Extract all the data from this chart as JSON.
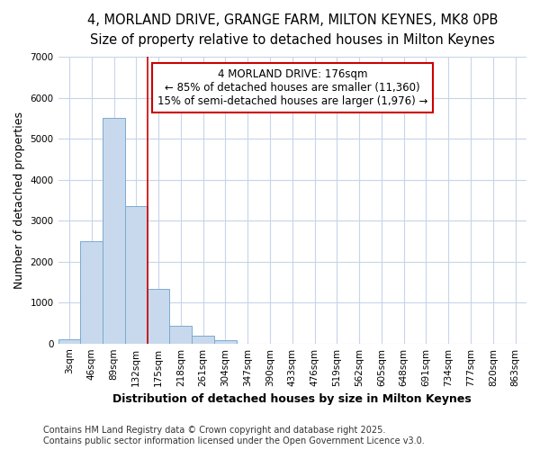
{
  "title_line1": "4, MORLAND DRIVE, GRANGE FARM, MILTON KEYNES, MK8 0PB",
  "title_line2": "Size of property relative to detached houses in Milton Keynes",
  "xlabel": "Distribution of detached houses by size in Milton Keynes",
  "ylabel": "Number of detached properties",
  "categories": [
    "3sqm",
    "46sqm",
    "89sqm",
    "132sqm",
    "175sqm",
    "218sqm",
    "261sqm",
    "304sqm",
    "347sqm",
    "390sqm",
    "433sqm",
    "476sqm",
    "519sqm",
    "562sqm",
    "605sqm",
    "648sqm",
    "691sqm",
    "734sqm",
    "777sqm",
    "820sqm",
    "863sqm"
  ],
  "values": [
    100,
    2500,
    5500,
    3350,
    1330,
    430,
    200,
    70,
    0,
    0,
    0,
    0,
    0,
    0,
    0,
    0,
    0,
    0,
    0,
    0,
    0
  ],
  "bar_color": "#c8d9ed",
  "bar_edgecolor": "#7aaad0",
  "vline_x_idx": 3.5,
  "vline_color": "#cc0000",
  "annotation_title": "4 MORLAND DRIVE: 176sqm",
  "annotation_line2": "← 85% of detached houses are smaller (11,360)",
  "annotation_line3": "15% of semi-detached houses are larger (1,976) →",
  "annotation_box_edgecolor": "#cc0000",
  "ylim": [
    0,
    7000
  ],
  "yticks": [
    0,
    1000,
    2000,
    3000,
    4000,
    5000,
    6000,
    7000
  ],
  "footnote_line1": "Contains HM Land Registry data © Crown copyright and database right 2025.",
  "footnote_line2": "Contains public sector information licensed under the Open Government Licence v3.0.",
  "bg_color": "#ffffff",
  "plot_bg_color": "#ffffff",
  "grid_color": "#c8d4e8",
  "title_fontsize": 10.5,
  "subtitle_fontsize": 9.5,
  "axis_label_fontsize": 9,
  "tick_fontsize": 7.5,
  "annotation_fontsize": 8.5,
  "footnote_fontsize": 7
}
